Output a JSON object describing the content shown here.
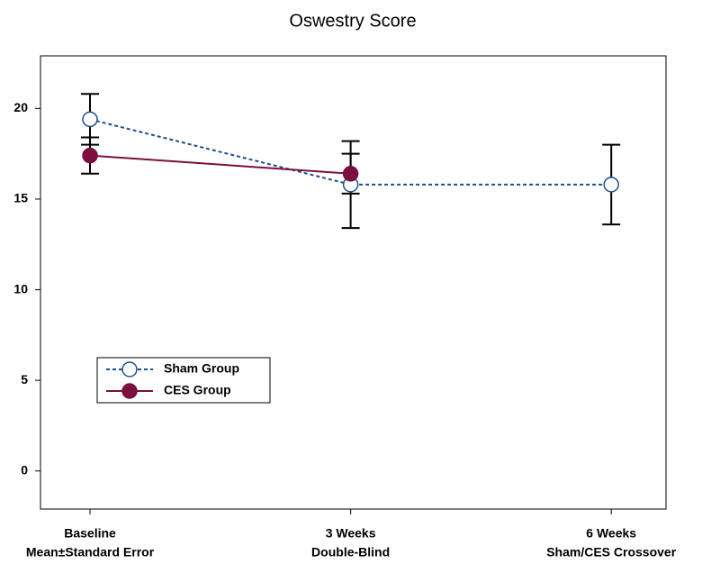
{
  "chart_data": {
    "type": "line",
    "title": "Oswestry Score",
    "categories": [
      [
        "Baseline",
        "Mean±Standard Error"
      ],
      [
        "3 Weeks",
        "Double-Blind"
      ],
      [
        "6 Weeks",
        "Sham/CES Crossover"
      ]
    ],
    "series": [
      {
        "name": "Sham Group",
        "color": "#1f4e8c",
        "dashed": true,
        "marker": "open",
        "values": [
          19.4,
          15.8,
          15.8
        ],
        "errors": [
          1.4,
          2.4,
          2.2
        ]
      },
      {
        "name": "CES Group",
        "color": "#7b0f3f",
        "dashed": false,
        "marker": "filled",
        "values": [
          17.4,
          16.4,
          null
        ],
        "errors": [
          1.0,
          1.1,
          null
        ]
      }
    ],
    "ylim": [
      -2.1,
      22.9
    ],
    "yticks": [
      0,
      5,
      10,
      15,
      20
    ],
    "grid": false,
    "legend": "lower left"
  }
}
